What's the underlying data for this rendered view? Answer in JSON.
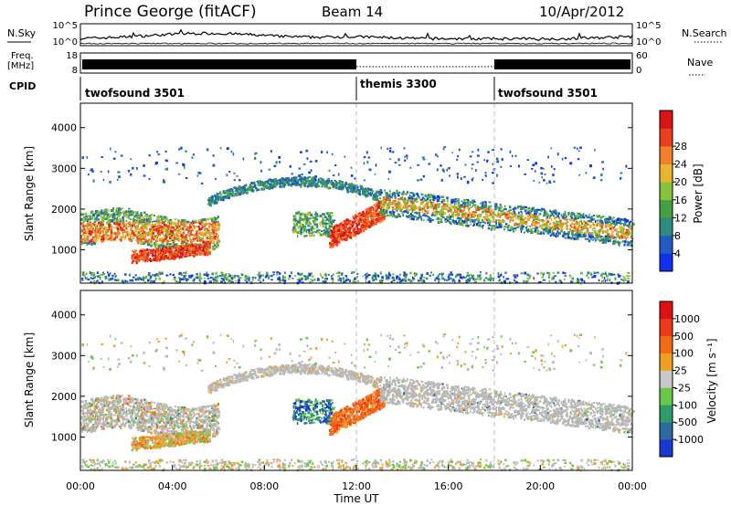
{
  "header": {
    "station": "Prince George (fitACF)",
    "beam": "Beam 14",
    "date": "10/Apr/2012"
  },
  "colors": {
    "background": "#ffffff",
    "axis": "#000000",
    "ground_scatter": "#b8b8b8",
    "divider": "#bbbbbb"
  },
  "noise_panel": {
    "left_label": "N.Sky",
    "right_label": "N.Search",
    "left_ticks": [
      "10^5",
      "10^0"
    ],
    "right_ticks": [
      "10^5",
      "10^0"
    ]
  },
  "freq_panel": {
    "left_label_1": "Freq.",
    "left_label_2": "[MHz]",
    "right_label": "Nave",
    "left_ticks": [
      "18",
      "8"
    ],
    "right_ticks": [
      "60",
      "0"
    ]
  },
  "cpid": {
    "label": "CPID",
    "segments": [
      {
        "name": "twofsound 3501",
        "start_hour": 0
      },
      {
        "name": "themis 3300",
        "start_hour": 12
      },
      {
        "name": "twofsound 3501",
        "start_hour": 18
      }
    ]
  },
  "chart_data": [
    {
      "type": "heatmap",
      "title": "Power",
      "ylabel": "Slant Range [km]",
      "xlabel": "",
      "xlim_hours": [
        0,
        24
      ],
      "ylim": [
        180,
        4600
      ],
      "yticks": [
        1000,
        2000,
        3000,
        4000
      ],
      "colorbar": {
        "label": "Power [dB]",
        "ticks": [
          "4",
          "8",
          "12",
          "16",
          "20",
          "24",
          "28"
        ],
        "colors": [
          "#1030ee",
          "#1f5bc0",
          "#2f8a80",
          "#44a040",
          "#86c23a",
          "#e8b62e",
          "#f2802a",
          "#ea3f1c",
          "#d81414"
        ]
      }
    },
    {
      "type": "heatmap",
      "title": "Velocity",
      "ylabel": "Slant Range [km]",
      "xlabel": "Time UT",
      "xlim_hours": [
        0,
        24
      ],
      "ylim": [
        180,
        4600
      ],
      "yticks": [
        1000,
        2000,
        3000,
        4000
      ],
      "xticks": [
        "00:00",
        "04:00",
        "08:00",
        "12:00",
        "16:00",
        "20:00",
        "00:00"
      ],
      "colorbar": {
        "label": "Velocity [m s⁻¹]",
        "ticks": [
          "1000",
          "500",
          "100",
          "25",
          "-25",
          "-100",
          "-500",
          "-1000"
        ],
        "colors": [
          "#1838d0",
          "#2a6a9e",
          "#2f9a6a",
          "#6ac846",
          "#c8c8c8",
          "#f0a020",
          "#f06a18",
          "#ec3a18",
          "#e01010"
        ]
      }
    }
  ]
}
